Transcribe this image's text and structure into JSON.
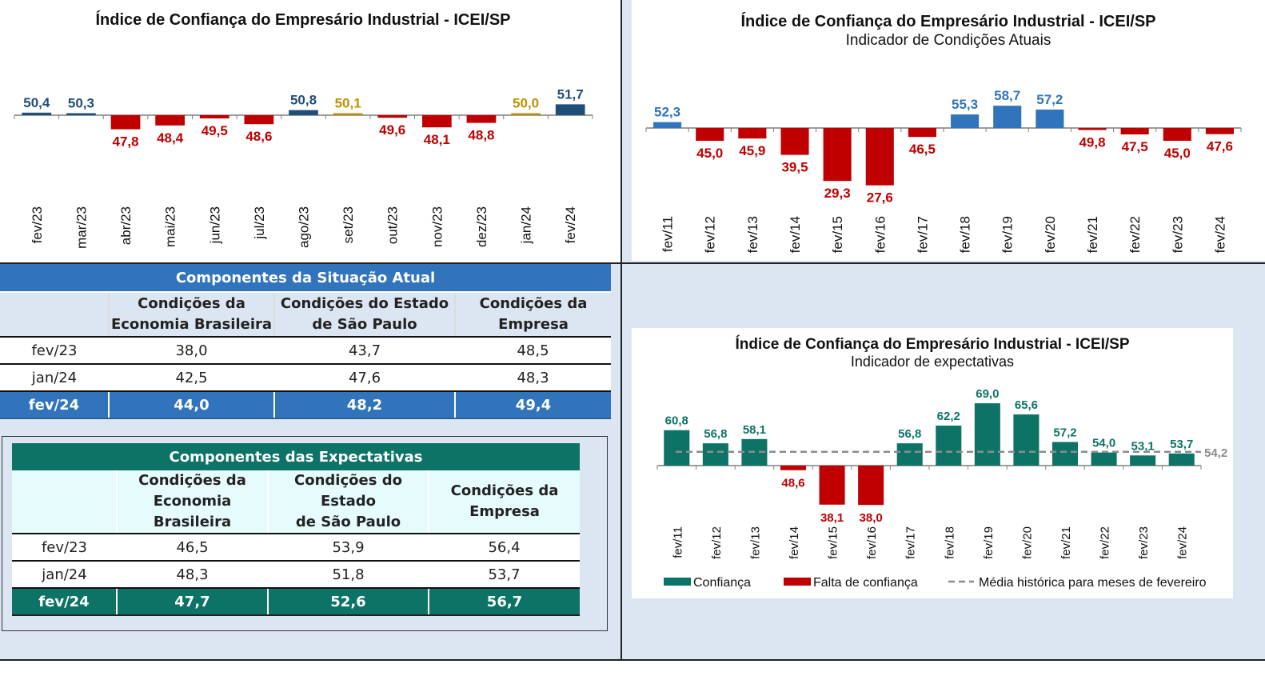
{
  "colors": {
    "dark_blue": "#1f4e79",
    "blue": "#3274bb",
    "red": "#c00000",
    "gold": "#bf9000",
    "teal": "#0d7366",
    "gray_dash": "#8c8c8c"
  },
  "chart_data": [
    {
      "type": "bar",
      "title": "Índice de Confiança do Empresário Industrial - ICEI/SP",
      "baseline": 50,
      "categories": [
        "fev/23",
        "mar/23",
        "abr/23",
        "mai/23",
        "jun/23",
        "jul/23",
        "ago/23",
        "set/23",
        "out/23",
        "nov/23",
        "dez/23",
        "jan/24",
        "fev/24"
      ],
      "values": [
        50.4,
        50.3,
        47.8,
        48.4,
        49.5,
        48.6,
        50.8,
        50.1,
        49.6,
        48.1,
        48.8,
        50.0,
        51.7
      ],
      "labels": [
        "50,4",
        "50,3",
        "47,8",
        "48,4",
        "49,5",
        "48,6",
        "50,8",
        "50,1",
        "49,6",
        "48,1",
        "48,8",
        "50,0",
        "51,7"
      ],
      "colors": [
        "#1f4e79",
        "#1f4e79",
        "#c00000",
        "#c00000",
        "#c00000",
        "#c00000",
        "#1f4e79",
        "#bf9000",
        "#c00000",
        "#c00000",
        "#c00000",
        "#bf9000",
        "#1f4e79"
      ]
    },
    {
      "type": "bar",
      "title": "Índice de Confiança do Empresário Industrial - ICEI/SP",
      "subtitle": "Indicador de Condições Atuais",
      "baseline": 50,
      "categories": [
        "fev/11",
        "fev/12",
        "fev/13",
        "fev/14",
        "fev/15",
        "fev/16",
        "fev/17",
        "fev/18",
        "fev/19",
        "fev/20",
        "fev/21",
        "fev/22",
        "fev/23",
        "fev/24"
      ],
      "values": [
        52.3,
        45.0,
        45.9,
        39.5,
        29.3,
        27.6,
        46.5,
        55.3,
        58.7,
        57.2,
        49.8,
        47.5,
        45.0,
        47.6
      ],
      "labels": [
        "52,3",
        "45,0",
        "45,9",
        "39,5",
        "29,3",
        "27,6",
        "46,5",
        "55,3",
        "58,7",
        "57,2",
        "49,8",
        "47,5",
        "45,0",
        "47,6"
      ]
    },
    {
      "type": "bar",
      "title": "Índice de Confiança do Empresário Industrial - ICEI/SP",
      "subtitle": "Indicador de expectativas",
      "baseline": 50,
      "categories": [
        "fev/11",
        "fev/12",
        "fev/13",
        "fev/14",
        "fev/15",
        "fev/16",
        "fev/17",
        "fev/18",
        "fev/19",
        "fev/20",
        "fev/21",
        "fev/22",
        "fev/23",
        "fev/24"
      ],
      "values": [
        60.8,
        56.8,
        58.1,
        48.6,
        38.1,
        38.0,
        56.8,
        62.2,
        69.0,
        65.6,
        57.2,
        54.0,
        53.1,
        53.7
      ],
      "labels": [
        "60,8",
        "56,8",
        "58,1",
        "48,6",
        "38,1",
        "38,0",
        "56,8",
        "62,2",
        "69,0",
        "65,6",
        "57,2",
        "54,0",
        "53,1",
        "53,7"
      ],
      "reference_line": {
        "value": 54.2,
        "label": "54,2"
      },
      "legend": [
        "Confiança",
        "Falta de confiança",
        "Média histórica para meses de fevereiro"
      ],
      "legend_placement": "bottom"
    }
  ],
  "table_atual": {
    "title": "Componentes da Situação Atual",
    "headers": [
      [
        "Condições da",
        "Economia Brasileira"
      ],
      [
        "Condições do Estado",
        "de São Paulo"
      ],
      [
        "Condições da",
        "Empresa"
      ]
    ],
    "rows": [
      [
        "fev/23",
        "38,0",
        "43,7",
        "48,5"
      ],
      [
        "jan/24",
        "42,5",
        "47,6",
        "48,3"
      ],
      [
        "fev/24",
        "44,0",
        "48,2",
        "49,4"
      ]
    ]
  },
  "table_expect": {
    "title": "Componentes das Expectativas",
    "headers": [
      [
        "Condições da",
        "Economia Brasileira"
      ],
      [
        "Condições do Estado",
        "de São Paulo"
      ],
      [
        "Condições da",
        "Empresa"
      ]
    ],
    "rows": [
      [
        "fev/23",
        "46,5",
        "53,9",
        "56,4"
      ],
      [
        "jan/24",
        "48,3",
        "51,8",
        "53,7"
      ],
      [
        "fev/24",
        "47,7",
        "52,6",
        "56,7"
      ]
    ]
  }
}
